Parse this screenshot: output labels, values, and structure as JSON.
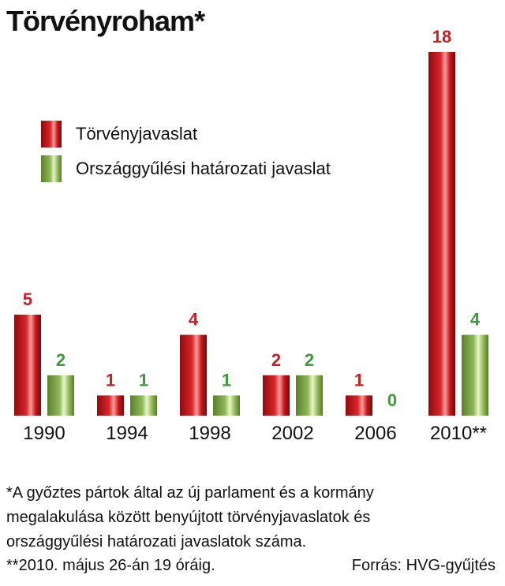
{
  "chart_data": {
    "type": "bar",
    "title": "Törvényroham*",
    "categories": [
      "1990",
      "1994",
      "1998",
      "2002",
      "2006",
      "2010**"
    ],
    "series": [
      {
        "name": "Törvényjavaslat",
        "values": [
          5,
          1,
          4,
          2,
          1,
          18
        ],
        "color": "#d0201f"
      },
      {
        "name": "Országgyűlési határozati javaslat",
        "values": [
          2,
          1,
          1,
          2,
          0,
          4
        ],
        "color": "#8ab54f"
      }
    ],
    "label_colors": [
      "#cc1f24",
      "#3f9a3a"
    ],
    "xlabel": "",
    "ylabel": "",
    "ylim": [
      0,
      18
    ],
    "grid": false,
    "legend_position": "top-left",
    "data_labels": true
  },
  "footnote": "*A győztes pártok által az új parlament és a kormány megalakulása között benyújtott törvényjavaslatok és országgyűlési határozati javaslatok száma.",
  "footnote2": "**2010. május 26-án 19 óráig.",
  "source": "Forrás: HVG-gyűjtés"
}
